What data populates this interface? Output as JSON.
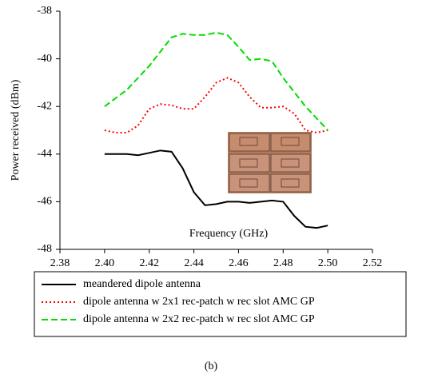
{
  "chart_data": {
    "type": "line",
    "x_label": "Frequency (GHz)",
    "y_label": "Power received (dBm)",
    "caption": "(b)",
    "x": [
      2.4,
      2.405,
      2.41,
      2.415,
      2.42,
      2.425,
      2.43,
      2.435,
      2.44,
      2.445,
      2.45,
      2.455,
      2.46,
      2.465,
      2.47,
      2.475,
      2.48,
      2.485,
      2.49,
      2.495,
      2.5
    ],
    "series": [
      {
        "name": "meandered dipole antenna",
        "color": "#000000",
        "dash": "solid",
        "values": [
          -44,
          -44,
          -44,
          -44.05,
          -43.95,
          -43.85,
          -43.9,
          -44.6,
          -45.6,
          -46.15,
          -46.1,
          -46.0,
          -46.0,
          -46.05,
          -46.0,
          -45.95,
          -46.0,
          -46.6,
          -47.05,
          -47.1,
          -47.0
        ]
      },
      {
        "name": "dipole antenna w 2x1 rec-patch w rec slot AMC GP",
        "color": "#ff0000",
        "dash": "dotted",
        "values": [
          -43,
          -43.1,
          -43.1,
          -42.8,
          -42.1,
          -41.9,
          -41.95,
          -42.1,
          -42.1,
          -41.6,
          -41.0,
          -40.8,
          -41.0,
          -41.6,
          -42.05,
          -42.05,
          -42.0,
          -42.3,
          -43.0,
          -43.1,
          -43.0
        ]
      },
      {
        "name": "dipole antenna w 2x2 rec-patch w rec slot AMC GP",
        "color": "#00dd00",
        "dash": "dashed",
        "values": [
          -42,
          -41.65,
          -41.3,
          -40.8,
          -40.3,
          -39.7,
          -39.1,
          -38.95,
          -39.0,
          -39.0,
          -38.9,
          -39.0,
          -39.5,
          -40.05,
          -40.0,
          -40.1,
          -40.8,
          -41.4,
          -42.0,
          -42.5,
          -43.0
        ]
      }
    ],
    "xlim": [
      2.38,
      2.52
    ],
    "xticks": [
      {
        "value": 2.38,
        "label": "2.38"
      },
      {
        "value": 2.4,
        "label": "2.40"
      },
      {
        "value": 2.42,
        "label": "2.42"
      },
      {
        "value": 2.44,
        "label": "2.44"
      },
      {
        "value": 2.46,
        "label": "2.46"
      },
      {
        "value": 2.48,
        "label": "2.48"
      },
      {
        "value": 2.5,
        "label": "2.50"
      },
      {
        "value": 2.52,
        "label": "2.52"
      }
    ],
    "ylim": [
      -48,
      -38
    ],
    "yticks": [
      -38,
      -40,
      -42,
      -44,
      -46,
      -48
    ],
    "grid": false,
    "legend": "bottom"
  }
}
